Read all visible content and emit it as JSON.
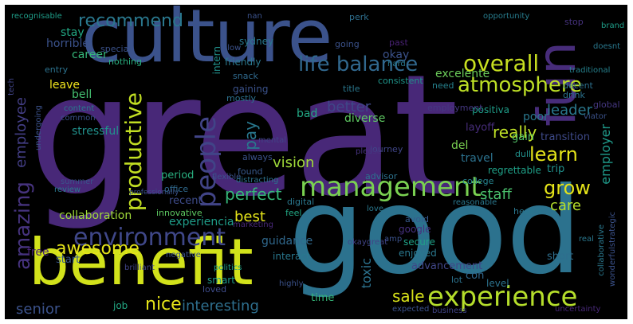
{
  "words": [
    {
      "text": "great",
      "color": "#482878"
    },
    {
      "text": "culture",
      "color": "#3b528b"
    },
    {
      "text": "good",
      "color": "#2c728e"
    },
    {
      "text": "benefit",
      "color": "#d2e21b"
    },
    {
      "text": "fun",
      "color": "#472c7a"
    },
    {
      "text": "experience",
      "color": "#b5de2b"
    },
    {
      "text": "management",
      "color": "#7ad151"
    },
    {
      "text": "environment",
      "color": "#3f4788"
    },
    {
      "text": "people",
      "color": "#414487"
    },
    {
      "text": "overall",
      "color": "#c8e020"
    },
    {
      "text": "atmosphere",
      "color": "#bddf26"
    },
    {
      "text": "life balance",
      "color": "#31688e"
    },
    {
      "text": "recommend",
      "color": "#2a788e"
    },
    {
      "text": "productive",
      "color": "#c2df23"
    },
    {
      "text": "amazing",
      "color": "#46337e"
    },
    {
      "text": "awesome",
      "color": "#e5e419"
    },
    {
      "text": "learn",
      "color": "#e5e419"
    },
    {
      "text": "perfect",
      "color": "#35b779"
    },
    {
      "text": "grow",
      "color": "#e5e419"
    },
    {
      "text": "nice",
      "color": "#e5e419"
    },
    {
      "text": "interesting",
      "color": "#2e6f8e"
    },
    {
      "text": "vision",
      "color": "#a0da39"
    },
    {
      "text": "sale",
      "color": "#d8e219"
    },
    {
      "text": "senior",
      "color": "#3b528b"
    },
    {
      "text": "leader",
      "color": "#2a788e"
    },
    {
      "text": "really",
      "color": "#bddf26"
    },
    {
      "text": "employee",
      "color": "#433e85"
    },
    {
      "text": "best",
      "color": "#e5e419"
    },
    {
      "text": "pay",
      "color": "#29788e"
    },
    {
      "text": "better",
      "color": "#3f4788"
    },
    {
      "text": "toxic",
      "color": "#2c728e"
    },
    {
      "text": "staff",
      "color": "#4ac16d"
    },
    {
      "text": "care",
      "color": "#b5de2b"
    },
    {
      "text": "employer",
      "color": "#1f9a8a"
    },
    {
      "text": "stressful",
      "color": "#21918c"
    },
    {
      "text": "diverse",
      "color": "#5ec962"
    },
    {
      "text": "bad",
      "color": "#22a884"
    },
    {
      "text": "okay",
      "color": "#3b528b"
    },
    {
      "text": "excelente",
      "color": "#6ccd5a"
    },
    {
      "text": "guidance",
      "color": "#30698e"
    },
    {
      "text": "collaboration",
      "color": "#a0da39"
    },
    {
      "text": "free",
      "color": "#482475"
    },
    {
      "text": "experiencia",
      "color": "#1f9e89"
    },
    {
      "text": "leave",
      "color": "#f1e51d"
    },
    {
      "text": "horrible",
      "color": "#3b528b"
    },
    {
      "text": "career",
      "color": "#35b779"
    },
    {
      "text": "stay",
      "color": "#22a884"
    },
    {
      "text": "bell",
      "color": "#44bf70"
    },
    {
      "text": "travel",
      "color": "#2c728e"
    },
    {
      "text": "del",
      "color": "#7ad151"
    },
    {
      "text": "transition",
      "color": "#3e4a89"
    },
    {
      "text": "gain",
      "color": "#54c568"
    },
    {
      "text": "positiva",
      "color": "#1f9e89"
    },
    {
      "text": "poor",
      "color": "#2a788e"
    },
    {
      "text": "layoff",
      "color": "#472d7b"
    },
    {
      "text": "period",
      "color": "#29af7f"
    },
    {
      "text": "recent",
      "color": "#3e4c8a"
    },
    {
      "text": "advancement",
      "color": "#404688"
    },
    {
      "text": "smart",
      "color": "#1f9a8a"
    },
    {
      "text": "start",
      "color": "#38588c"
    },
    {
      "text": "interact",
      "color": "#29788e"
    },
    {
      "text": "trip",
      "color": "#21918c"
    },
    {
      "text": "regrettable",
      "color": "#1fa188"
    },
    {
      "text": "job",
      "color": "#22a884"
    },
    {
      "text": "time",
      "color": "#35b779"
    },
    {
      "text": "con",
      "color": "#31688e"
    },
    {
      "text": "short",
      "color": "#2e6e8e"
    },
    {
      "text": "level",
      "color": "#2c728e"
    },
    {
      "text": "secure",
      "color": "#1fa187"
    },
    {
      "text": "enjoyed",
      "color": "#2a788e"
    },
    {
      "text": "google",
      "color": "#46307e"
    },
    {
      "text": "avoid",
      "color": "#375a8c"
    },
    {
      "text": "lot",
      "color": "#2c728e"
    },
    {
      "text": "loved",
      "color": "#3e4c8a"
    },
    {
      "text": "sydney",
      "color": "#2a788e"
    },
    {
      "text": "friendly",
      "color": "#2a788e"
    },
    {
      "text": "intern",
      "color": "#21918c"
    },
    {
      "text": "gaining",
      "color": "#3b528b"
    },
    {
      "text": "innovative",
      "color": "#5ec962"
    },
    {
      "text": "office",
      "color": "#306a8e"
    },
    {
      "text": "always",
      "color": "#3b528b"
    },
    {
      "text": "found",
      "color": "#38598c"
    },
    {
      "text": "nothing",
      "color": "#29af7f"
    },
    {
      "text": "entry",
      "color": "#2c728e"
    },
    {
      "text": "special",
      "color": "#3b528b"
    },
    {
      "text": "college",
      "color": "#25848e"
    },
    {
      "text": "journey",
      "color": "#404688"
    },
    {
      "text": "decent",
      "color": "#2d708e"
    },
    {
      "text": "drink",
      "color": "#2c738e"
    },
    {
      "text": "global",
      "color": "#453781"
    },
    {
      "text": "traditional",
      "color": "#26828e"
    },
    {
      "text": "dull",
      "color": "#21918c"
    },
    {
      "text": "stop",
      "color": "#46327e"
    },
    {
      "text": "health",
      "color": "#2a768e"
    },
    {
      "text": "snack",
      "color": "#306a8e"
    },
    {
      "text": "mostly",
      "color": "#2c728e"
    },
    {
      "text": "past",
      "color": "#482173"
    },
    {
      "text": "consistent",
      "color": "#1f958b"
    },
    {
      "text": "employment",
      "color": "#453781"
    },
    {
      "text": "need",
      "color": "#26828e"
    },
    {
      "text": "opportunity",
      "color": "#287d8e"
    },
    {
      "text": "recognisable",
      "color": "#1f9e89"
    },
    {
      "text": "digital",
      "color": "#2a788e"
    },
    {
      "text": "please",
      "color": "#46327e"
    },
    {
      "text": "advisor",
      "color": "#2c728e"
    },
    {
      "text": "feel",
      "color": "#22a884"
    },
    {
      "text": "amp",
      "color": "#3b528b"
    },
    {
      "text": "love",
      "color": "#2a788e"
    },
    {
      "text": "going",
      "color": "#3b528b"
    },
    {
      "text": "perk",
      "color": "#2e6f8e"
    },
    {
      "text": "title",
      "color": "#2a788e"
    },
    {
      "text": "viator",
      "color": "#3b528b"
    },
    {
      "text": "doesnt",
      "color": "#2a788e"
    },
    {
      "text": "brand",
      "color": "#1f9e89"
    },
    {
      "text": "tech",
      "color": "#414487"
    },
    {
      "text": "hard",
      "color": "#2a788e"
    },
    {
      "text": "content",
      "color": "#2a788e"
    },
    {
      "text": "common",
      "color": "#3b528b"
    },
    {
      "text": "undergoing",
      "color": "#3b528b"
    },
    {
      "text": "summer",
      "color": "#3b528b"
    },
    {
      "text": "review",
      "color": "#2a788e"
    },
    {
      "text": "marketing",
      "color": "#482878"
    },
    {
      "text": "politics",
      "color": "#1f9e89"
    },
    {
      "text": "negative",
      "color": "#3b528b"
    },
    {
      "text": "business",
      "color": "#414487"
    },
    {
      "text": "expected",
      "color": "#3b528b"
    },
    {
      "text": "uncertainty",
      "color": "#482878"
    },
    {
      "text": "collaborative",
      "color": "#2a788e"
    },
    {
      "text": "wonderfulstrategic",
      "color": "#3b528b"
    },
    {
      "text": "okaygreat",
      "color": "#414487"
    },
    {
      "text": "reasonable",
      "color": "#2a788e"
    },
    {
      "text": "flexible",
      "color": "#3b528b"
    },
    {
      "text": "distracting",
      "color": "#2c728e"
    },
    {
      "text": "professionally",
      "color": "#3b528b"
    },
    {
      "text": "nan",
      "color": "#3b528b"
    },
    {
      "text": "slow",
      "color": "#3b528b"
    },
    {
      "text": "mental",
      "color": "#414487"
    },
    {
      "text": "brilliant",
      "color": "#414487"
    },
    {
      "text": "highly",
      "color": "#3b528b"
    },
    {
      "text": "real",
      "color": "#2a788e"
    }
  ]
}
